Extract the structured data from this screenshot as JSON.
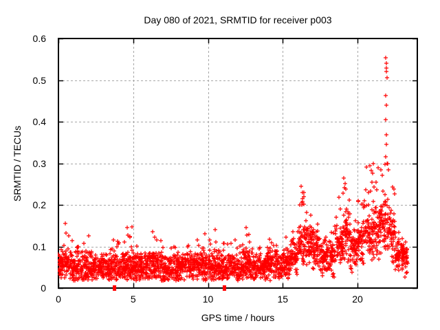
{
  "styles": {
    "background": "#ffffff",
    "frame_color": "#000000",
    "grid_color": "#a6a6a6",
    "text_color": "#000000",
    "marker_color": "#ff0000"
  },
  "chart_data": {
    "type": "scatter",
    "title": "Day 080 of 2021, SRMTID for receiver p003",
    "xlabel": "GPS time / hours",
    "ylabel": "SRMTID / TECUs",
    "xlim": [
      0,
      24
    ],
    "ylim": [
      0,
      0.6
    ],
    "x_ticks": [
      0,
      5,
      10,
      15,
      20
    ],
    "x_tick_labels": [
      "0",
      "5",
      "10",
      "15",
      "20"
    ],
    "y_ticks": [
      0,
      0.1,
      0.2,
      0.3,
      0.4,
      0.5,
      0.6
    ],
    "y_tick_labels": [
      "0",
      "0.1",
      "0.2",
      "0.3",
      "0.4",
      "0.5",
      "0.6"
    ],
    "grid": "dashed",
    "legend": "none",
    "marker": "plus",
    "marker_color": "#ff0000",
    "sample_interval_hours": 0.008333,
    "data_start_hour": 0,
    "data_end_hour": 23.35,
    "points_per_hour": 120,
    "envelope_bins": [
      [
        0.0,
        0.5,
        0.055,
        0.12
      ],
      [
        0.5,
        1.0,
        0.055,
        0.16
      ],
      [
        1.0,
        1.5,
        0.05,
        0.1
      ],
      [
        1.5,
        2.0,
        0.05,
        0.11
      ],
      [
        2.0,
        2.5,
        0.05,
        0.13
      ],
      [
        2.5,
        3.0,
        0.045,
        0.1
      ],
      [
        3.0,
        3.5,
        0.05,
        0.11
      ],
      [
        3.5,
        4.0,
        0.045,
        0.12
      ],
      [
        4.0,
        4.5,
        0.05,
        0.12
      ],
      [
        4.5,
        5.0,
        0.05,
        0.15
      ],
      [
        5.0,
        5.5,
        0.05,
        0.11
      ],
      [
        5.5,
        6.0,
        0.05,
        0.12
      ],
      [
        6.0,
        6.5,
        0.05,
        0.14
      ],
      [
        6.5,
        7.0,
        0.05,
        0.12
      ],
      [
        7.0,
        7.5,
        0.045,
        0.1
      ],
      [
        7.5,
        8.0,
        0.045,
        0.11
      ],
      [
        8.0,
        8.5,
        0.05,
        0.12
      ],
      [
        8.5,
        9.0,
        0.05,
        0.11
      ],
      [
        9.0,
        9.5,
        0.055,
        0.12
      ],
      [
        9.5,
        10.0,
        0.055,
        0.13
      ],
      [
        10.0,
        10.5,
        0.055,
        0.14
      ],
      [
        10.5,
        11.0,
        0.05,
        0.12
      ],
      [
        11.0,
        11.5,
        0.05,
        0.11
      ],
      [
        11.5,
        12.0,
        0.05,
        0.12
      ],
      [
        12.0,
        12.5,
        0.055,
        0.13
      ],
      [
        12.5,
        13.0,
        0.055,
        0.15
      ],
      [
        13.0,
        13.5,
        0.05,
        0.11
      ],
      [
        13.5,
        14.0,
        0.05,
        0.1
      ],
      [
        14.0,
        14.5,
        0.055,
        0.12
      ],
      [
        14.5,
        15.0,
        0.055,
        0.11
      ],
      [
        15.0,
        15.5,
        0.06,
        0.13
      ],
      [
        15.5,
        16.0,
        0.07,
        0.15
      ],
      [
        16.0,
        16.5,
        0.1,
        0.25
      ],
      [
        16.5,
        17.0,
        0.11,
        0.2
      ],
      [
        17.0,
        17.5,
        0.09,
        0.16
      ],
      [
        17.5,
        18.0,
        0.07,
        0.13
      ],
      [
        18.0,
        18.5,
        0.075,
        0.16
      ],
      [
        18.5,
        19.0,
        0.1,
        0.22
      ],
      [
        19.0,
        19.5,
        0.13,
        0.27
      ],
      [
        19.5,
        20.0,
        0.09,
        0.17
      ],
      [
        20.0,
        20.5,
        0.11,
        0.22
      ],
      [
        20.5,
        21.0,
        0.13,
        0.3
      ],
      [
        21.0,
        21.5,
        0.14,
        0.28
      ],
      [
        21.5,
        22.0,
        0.15,
        0.3
      ],
      [
        22.0,
        22.5,
        0.13,
        0.26
      ],
      [
        22.5,
        23.0,
        0.085,
        0.16
      ],
      [
        23.0,
        23.35,
        0.07,
        0.12
      ]
    ],
    "outliers": [
      [
        0.46,
        0.155
      ],
      [
        0.5,
        0.132
      ],
      [
        2.0,
        0.125
      ],
      [
        4.6,
        0.145
      ],
      [
        4.65,
        0.128
      ],
      [
        6.3,
        0.135
      ],
      [
        6.45,
        0.122
      ],
      [
        9.8,
        0.13
      ],
      [
        10.5,
        0.14
      ],
      [
        12.55,
        0.145
      ],
      [
        12.6,
        0.128
      ],
      [
        16.25,
        0.245
      ],
      [
        16.3,
        0.23
      ],
      [
        16.32,
        0.215
      ],
      [
        16.28,
        0.2
      ],
      [
        19.1,
        0.265
      ],
      [
        19.15,
        0.252
      ],
      [
        19.2,
        0.238
      ],
      [
        20.85,
        0.295
      ],
      [
        20.9,
        0.282
      ],
      [
        21.05,
        0.3
      ],
      [
        21.4,
        0.29
      ],
      [
        21.9,
        0.553
      ],
      [
        21.92,
        0.54
      ],
      [
        21.95,
        0.529
      ],
      [
        21.93,
        0.52
      ],
      [
        21.96,
        0.505
      ],
      [
        21.9,
        0.462
      ],
      [
        21.94,
        0.44
      ],
      [
        21.9,
        0.405
      ],
      [
        21.95,
        0.368
      ],
      [
        21.92,
        0.345
      ],
      [
        21.9,
        0.315
      ],
      [
        22.0,
        0.3
      ],
      [
        22.05,
        0.285
      ]
    ],
    "zero_value_points": [
      3.75,
      11.1
    ]
  }
}
